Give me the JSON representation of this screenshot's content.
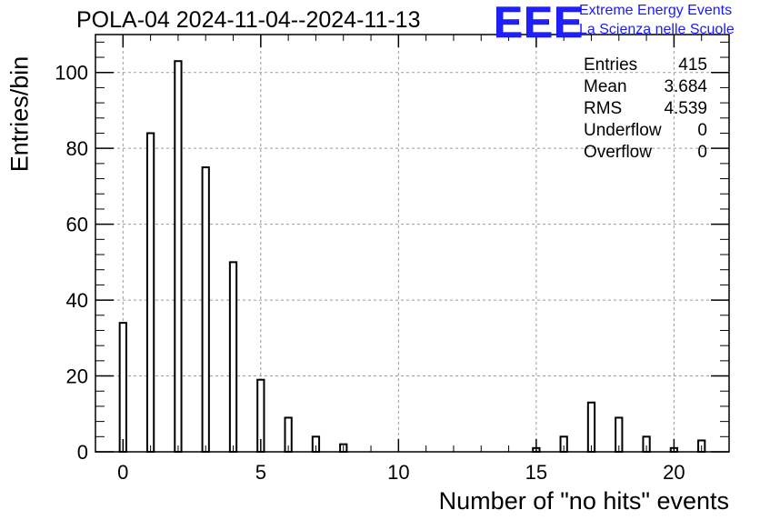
{
  "title": "POLA-04 2024-11-04--2024-11-13",
  "logo": {
    "mark": "EEE",
    "line1": "Extreme Energy Events",
    "line2": "La Scienza nelle Scuole",
    "color": "#1a1aff"
  },
  "stats": {
    "rows": [
      {
        "label": "Entries",
        "value": "415"
      },
      {
        "label": "Mean",
        "value": "3.684"
      },
      {
        "label": "RMS",
        "value": "4.539"
      },
      {
        "label": "Underflow",
        "value": "0"
      },
      {
        "label": "Overflow",
        "value": "0"
      }
    ]
  },
  "chart_data": {
    "type": "bar",
    "title": "POLA-04 2024-11-04--2024-11-13",
    "xlabel": "Number of \"no hits\" events",
    "ylabel": "Entries/bin",
    "xlim": [
      -1,
      22
    ],
    "ylim": [
      0,
      110
    ],
    "xticks": [
      0,
      5,
      10,
      15,
      20
    ],
    "yticks": [
      0,
      20,
      40,
      60,
      80,
      100
    ],
    "grid": true,
    "categories": [
      0,
      1,
      2,
      3,
      4,
      5,
      6,
      7,
      8,
      15,
      16,
      17,
      18,
      19,
      20,
      21
    ],
    "values": [
      34,
      84,
      103,
      75,
      50,
      19,
      9,
      4,
      2,
      1,
      4,
      13,
      9,
      4,
      1,
      3
    ]
  }
}
